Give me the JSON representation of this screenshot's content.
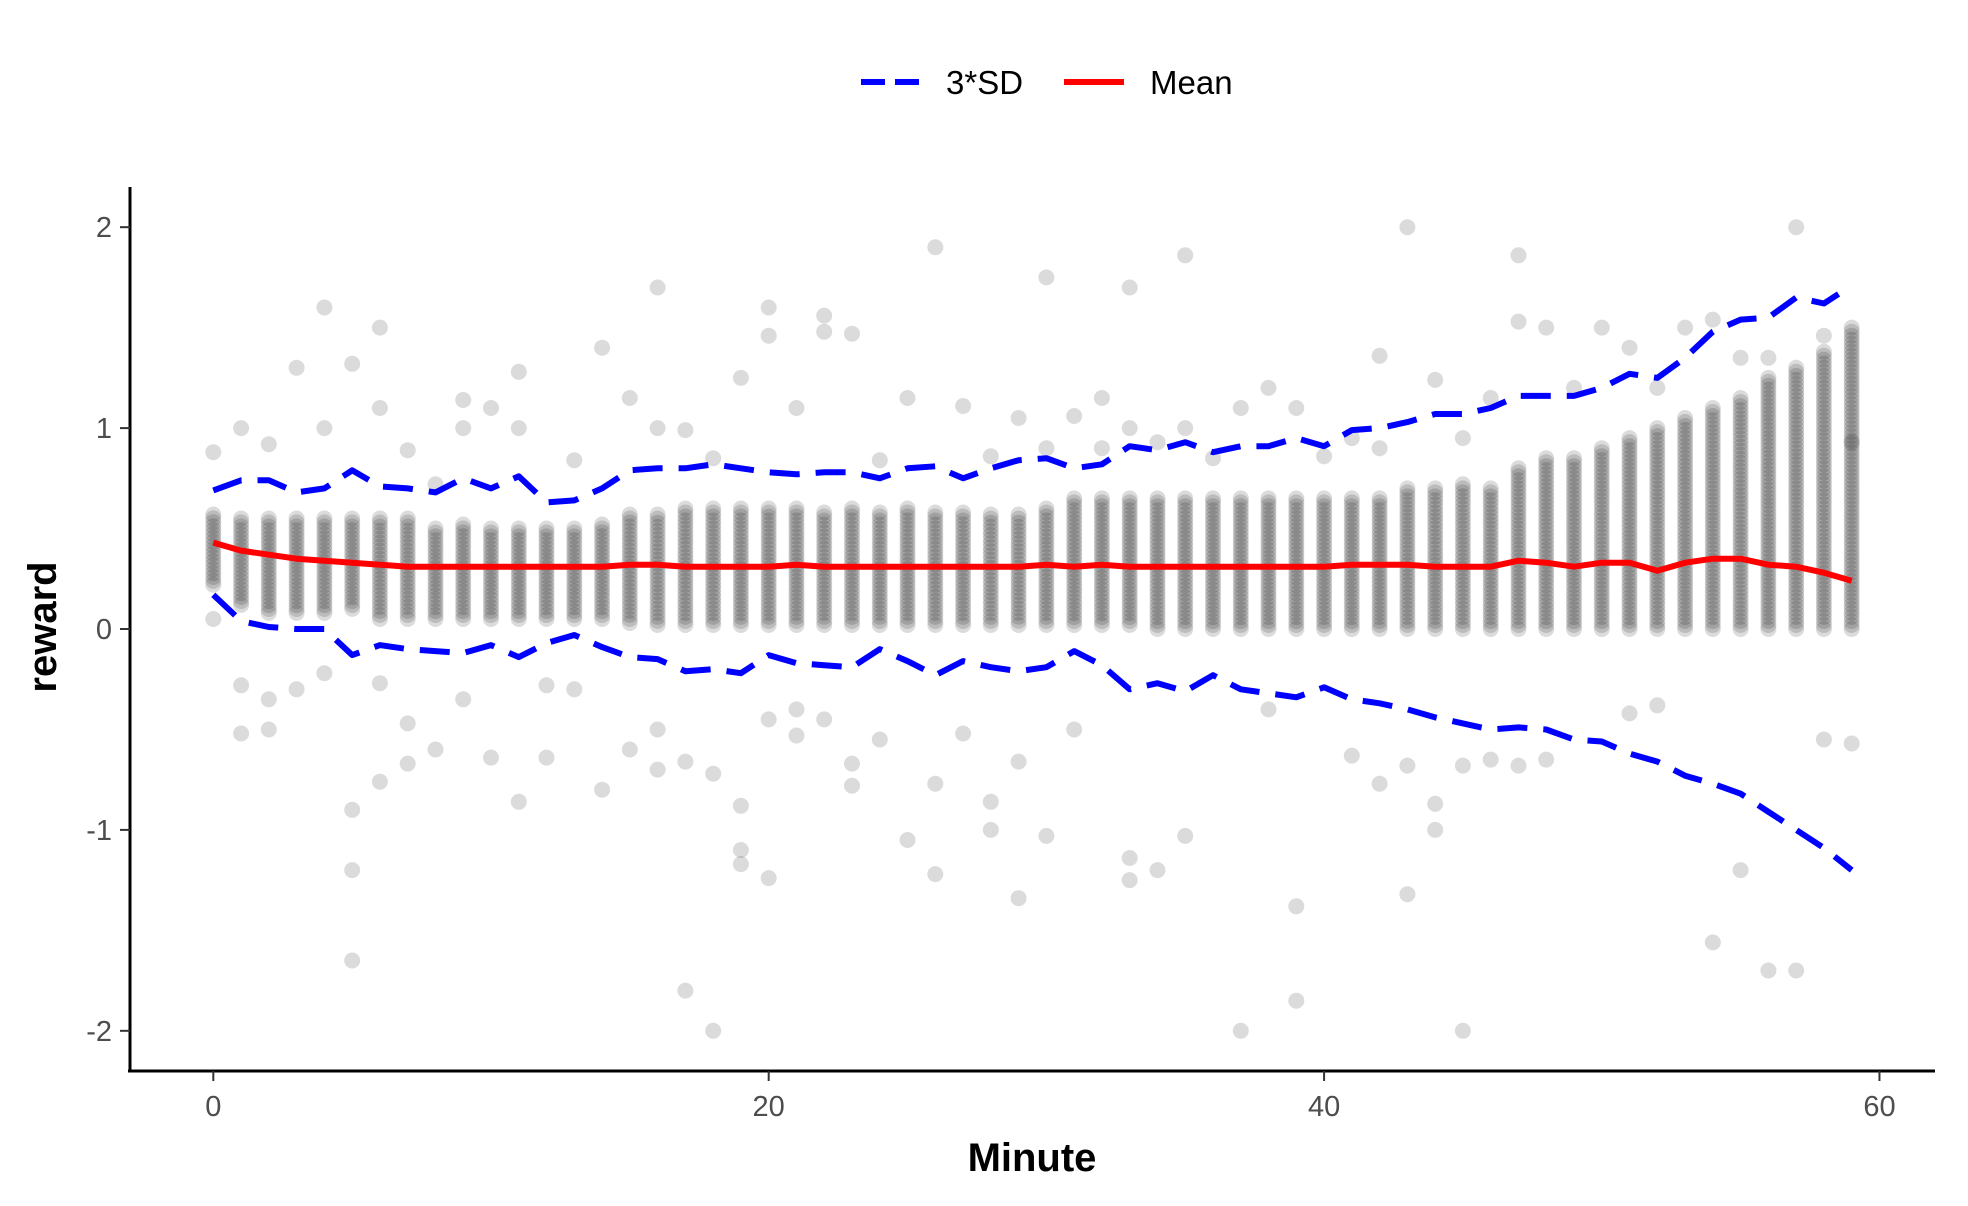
{
  "chart_data": {
    "type": "scatter",
    "xlabel": "Minute",
    "ylabel": "reward",
    "xlim": [
      -3,
      62
    ],
    "ylim": [
      -2.2,
      2.2
    ],
    "x_ticks": [
      0,
      20,
      40,
      60
    ],
    "y_ticks": [
      -2,
      -1,
      0,
      1,
      2
    ],
    "x_tick_labels": [
      "0",
      "20",
      "40",
      "60"
    ],
    "y_tick_labels": [
      "-2",
      "-1",
      "0",
      "1",
      "2"
    ],
    "grid": false,
    "legend_position": "top",
    "legend": [
      {
        "name": "3*SD",
        "color": "#0000ff",
        "style": "dashed"
      },
      {
        "name": "Mean",
        "color": "#ff0000",
        "style": "solid"
      }
    ],
    "point_color": "#000000",
    "point_opacity": 0.14,
    "minutes": [
      0,
      1,
      2,
      3,
      4,
      5,
      6,
      7,
      8,
      9,
      10,
      11,
      12,
      13,
      14,
      15,
      16,
      17,
      18,
      19,
      20,
      21,
      22,
      23,
      24,
      25,
      26,
      27,
      28,
      29,
      30,
      31,
      32,
      33,
      34,
      35,
      36,
      37,
      38,
      39,
      40,
      41,
      42,
      43,
      44,
      45,
      46,
      47,
      48,
      49,
      50,
      51,
      52,
      53,
      54,
      55,
      56,
      57,
      58,
      59
    ],
    "dense_low": [
      0.22,
      0.12,
      0.08,
      0.08,
      0.08,
      0.1,
      0.05,
      0.05,
      0.05,
      0.05,
      0.05,
      0.05,
      0.05,
      0.05,
      0.05,
      0.03,
      0.02,
      0.02,
      0.02,
      0.02,
      0.02,
      0.02,
      0.02,
      0.02,
      0.02,
      0.02,
      0.02,
      0.02,
      0.02,
      0.02,
      0.02,
      0.02,
      0.02,
      0.02,
      0.0,
      0.0,
      0.0,
      0.0,
      0.0,
      0.0,
      0.0,
      0.0,
      0.0,
      0.0,
      0.0,
      0.0,
      0.0,
      0.0,
      0.0,
      0.0,
      0.0,
      0.0,
      0.0,
      0.0,
      0.0,
      0.0,
      0.0,
      0.0,
      0.0,
      0.0
    ],
    "dense_high": [
      0.57,
      0.55,
      0.55,
      0.55,
      0.55,
      0.55,
      0.55,
      0.55,
      0.5,
      0.52,
      0.5,
      0.5,
      0.5,
      0.5,
      0.52,
      0.57,
      0.57,
      0.6,
      0.6,
      0.6,
      0.6,
      0.6,
      0.58,
      0.6,
      0.58,
      0.6,
      0.58,
      0.58,
      0.57,
      0.57,
      0.6,
      0.65,
      0.65,
      0.65,
      0.65,
      0.65,
      0.65,
      0.65,
      0.65,
      0.65,
      0.65,
      0.65,
      0.65,
      0.7,
      0.7,
      0.72,
      0.7,
      0.8,
      0.85,
      0.85,
      0.9,
      0.95,
      1.0,
      1.05,
      1.1,
      1.15,
      1.25,
      1.3,
      1.38,
      1.5
    ],
    "outlier_points": [
      [
        0,
        0.88
      ],
      [
        0,
        0.05
      ],
      [
        1,
        1.0
      ],
      [
        1,
        -0.52
      ],
      [
        1,
        -0.28
      ],
      [
        2,
        0.92
      ],
      [
        2,
        -0.5
      ],
      [
        2,
        -0.35
      ],
      [
        3,
        1.3
      ],
      [
        3,
        -0.3
      ],
      [
        4,
        1.6
      ],
      [
        4,
        1.0
      ],
      [
        4,
        -0.22
      ],
      [
        5,
        1.32
      ],
      [
        5,
        -0.9
      ],
      [
        5,
        -1.2
      ],
      [
        5,
        -1.65
      ],
      [
        6,
        1.5
      ],
      [
        6,
        1.1
      ],
      [
        6,
        -0.76
      ],
      [
        6,
        -0.27
      ],
      [
        7,
        0.89
      ],
      [
        7,
        -0.47
      ],
      [
        7,
        -0.67
      ],
      [
        8,
        0.72
      ],
      [
        8,
        -0.6
      ],
      [
        9,
        1.14
      ],
      [
        9,
        1.0
      ],
      [
        9,
        -0.35
      ],
      [
        10,
        1.1
      ],
      [
        10,
        -0.64
      ],
      [
        11,
        1.28
      ],
      [
        11,
        1.0
      ],
      [
        11,
        -0.86
      ],
      [
        12,
        -0.28
      ],
      [
        12,
        -0.64
      ],
      [
        13,
        0.84
      ],
      [
        13,
        -0.3
      ],
      [
        14,
        1.4
      ],
      [
        14,
        -0.8
      ],
      [
        15,
        1.15
      ],
      [
        15,
        -0.6
      ],
      [
        16,
        1.7
      ],
      [
        16,
        1.0
      ],
      [
        16,
        -0.5
      ],
      [
        16,
        -0.7
      ],
      [
        17,
        0.99
      ],
      [
        17,
        -1.8
      ],
      [
        17,
        -0.66
      ],
      [
        18,
        0.85
      ],
      [
        18,
        -0.72
      ],
      [
        18,
        -2.0
      ],
      [
        19,
        1.25
      ],
      [
        19,
        -0.88
      ],
      [
        19,
        -1.1
      ],
      [
        19,
        -1.17
      ],
      [
        20,
        1.6
      ],
      [
        20,
        1.46
      ],
      [
        20,
        -0.45
      ],
      [
        20,
        -1.24
      ],
      [
        21,
        1.1
      ],
      [
        21,
        -0.4
      ],
      [
        21,
        -0.53
      ],
      [
        22,
        1.56
      ],
      [
        22,
        1.48
      ],
      [
        22,
        -0.45
      ],
      [
        23,
        1.47
      ],
      [
        23,
        -0.67
      ],
      [
        23,
        -0.78
      ],
      [
        24,
        0.84
      ],
      [
        24,
        -0.55
      ],
      [
        25,
        1.15
      ],
      [
        25,
        -1.05
      ],
      [
        26,
        1.9
      ],
      [
        26,
        -1.22
      ],
      [
        26,
        -0.77
      ],
      [
        27,
        1.11
      ],
      [
        27,
        -0.52
      ],
      [
        28,
        0.86
      ],
      [
        28,
        -0.86
      ],
      [
        28,
        -1.0
      ],
      [
        29,
        1.05
      ],
      [
        29,
        -0.66
      ],
      [
        29,
        -1.34
      ],
      [
        30,
        1.75
      ],
      [
        30,
        0.9
      ],
      [
        30,
        -1.03
      ],
      [
        31,
        1.06
      ],
      [
        31,
        -0.5
      ],
      [
        32,
        1.15
      ],
      [
        32,
        0.9
      ],
      [
        33,
        1.7
      ],
      [
        33,
        1.0
      ],
      [
        33,
        -1.14
      ],
      [
        33,
        -1.25
      ],
      [
        34,
        0.93
      ],
      [
        34,
        -1.2
      ],
      [
        35,
        1.86
      ],
      [
        35,
        1.0
      ],
      [
        35,
        -1.03
      ],
      [
        36,
        0.85
      ],
      [
        37,
        1.1
      ],
      [
        37,
        -2.0
      ],
      [
        38,
        1.2
      ],
      [
        38,
        -0.4
      ],
      [
        39,
        1.1
      ],
      [
        39,
        -1.38
      ],
      [
        39,
        -1.85
      ],
      [
        40,
        0.86
      ],
      [
        41,
        0.95
      ],
      [
        41,
        -0.63
      ],
      [
        42,
        1.36
      ],
      [
        42,
        0.9
      ],
      [
        42,
        -0.77
      ],
      [
        43,
        2.0
      ],
      [
        43,
        -0.68
      ],
      [
        43,
        -1.32
      ],
      [
        44,
        1.24
      ],
      [
        44,
        -0.87
      ],
      [
        44,
        -1.0
      ],
      [
        45,
        0.95
      ],
      [
        45,
        -0.68
      ],
      [
        45,
        -2.0
      ],
      [
        46,
        1.15
      ],
      [
        46,
        -0.65
      ],
      [
        47,
        1.86
      ],
      [
        47,
        1.53
      ],
      [
        47,
        -0.68
      ],
      [
        48,
        1.5
      ],
      [
        48,
        -0.65
      ],
      [
        49,
        1.2
      ],
      [
        50,
        1.5
      ],
      [
        51,
        1.4
      ],
      [
        51,
        -0.42
      ],
      [
        52,
        1.2
      ],
      [
        52,
        -0.38
      ],
      [
        53,
        1.5
      ],
      [
        54,
        1.54
      ],
      [
        54,
        -1.56
      ],
      [
        55,
        1.35
      ],
      [
        55,
        -1.2
      ],
      [
        56,
        1.35
      ],
      [
        56,
        -1.7
      ],
      [
        57,
        2.0
      ],
      [
        57,
        -1.7
      ],
      [
        58,
        1.46
      ],
      [
        58,
        -0.55
      ],
      [
        59,
        0.93
      ],
      [
        59,
        -0.57
      ]
    ],
    "series": [
      {
        "name": "Mean",
        "color": "#ff0000",
        "style": "solid",
        "values": [
          0.43,
          0.39,
          0.37,
          0.35,
          0.34,
          0.33,
          0.32,
          0.31,
          0.31,
          0.31,
          0.31,
          0.31,
          0.31,
          0.31,
          0.31,
          0.32,
          0.32,
          0.31,
          0.31,
          0.31,
          0.31,
          0.32,
          0.31,
          0.31,
          0.31,
          0.31,
          0.31,
          0.31,
          0.31,
          0.31,
          0.32,
          0.31,
          0.32,
          0.31,
          0.31,
          0.31,
          0.31,
          0.31,
          0.31,
          0.31,
          0.31,
          0.32,
          0.32,
          0.32,
          0.31,
          0.31,
          0.31,
          0.34,
          0.33,
          0.31,
          0.33,
          0.33,
          0.29,
          0.33,
          0.35,
          0.35,
          0.32,
          0.31,
          0.28,
          0.24
        ]
      },
      {
        "name": "3*SD",
        "color": "#0000ff",
        "style": "dashed",
        "values": [
          0.69,
          0.74,
          0.74,
          0.68,
          0.7,
          0.79,
          0.71,
          0.7,
          0.68,
          0.75,
          0.7,
          0.76,
          0.63,
          0.64,
          0.7,
          0.79,
          0.8,
          0.8,
          0.82,
          0.8,
          0.78,
          0.77,
          0.78,
          0.78,
          0.75,
          0.8,
          0.81,
          0.75,
          0.8,
          0.84,
          0.85,
          0.8,
          0.82,
          0.91,
          0.89,
          0.93,
          0.88,
          0.91,
          0.91,
          0.95,
          0.91,
          0.99,
          1.0,
          1.03,
          1.07,
          1.07,
          1.1,
          1.16,
          1.16,
          1.16,
          1.2,
          1.27,
          1.25,
          1.35,
          1.48,
          1.54,
          1.55,
          1.65,
          1.62,
          1.71
        ]
      },
      {
        "name": "3*SD",
        "color": "#0000ff",
        "style": "dashed",
        "values": [
          0.17,
          0.04,
          0.01,
          0.0,
          0.0,
          -0.13,
          -0.08,
          -0.1,
          -0.11,
          -0.12,
          -0.08,
          -0.14,
          -0.07,
          -0.03,
          -0.09,
          -0.14,
          -0.15,
          -0.21,
          -0.2,
          -0.22,
          -0.13,
          -0.17,
          -0.18,
          -0.19,
          -0.1,
          -0.16,
          -0.23,
          -0.16,
          -0.19,
          -0.21,
          -0.19,
          -0.11,
          -0.18,
          -0.3,
          -0.27,
          -0.31,
          -0.23,
          -0.3,
          -0.32,
          -0.34,
          -0.29,
          -0.35,
          -0.37,
          -0.4,
          -0.44,
          -0.47,
          -0.5,
          -0.49,
          -0.5,
          -0.55,
          -0.56,
          -0.62,
          -0.66,
          -0.73,
          -0.77,
          -0.82,
          -0.91,
          -1.0,
          -1.09,
          -1.2
        ]
      }
    ]
  }
}
